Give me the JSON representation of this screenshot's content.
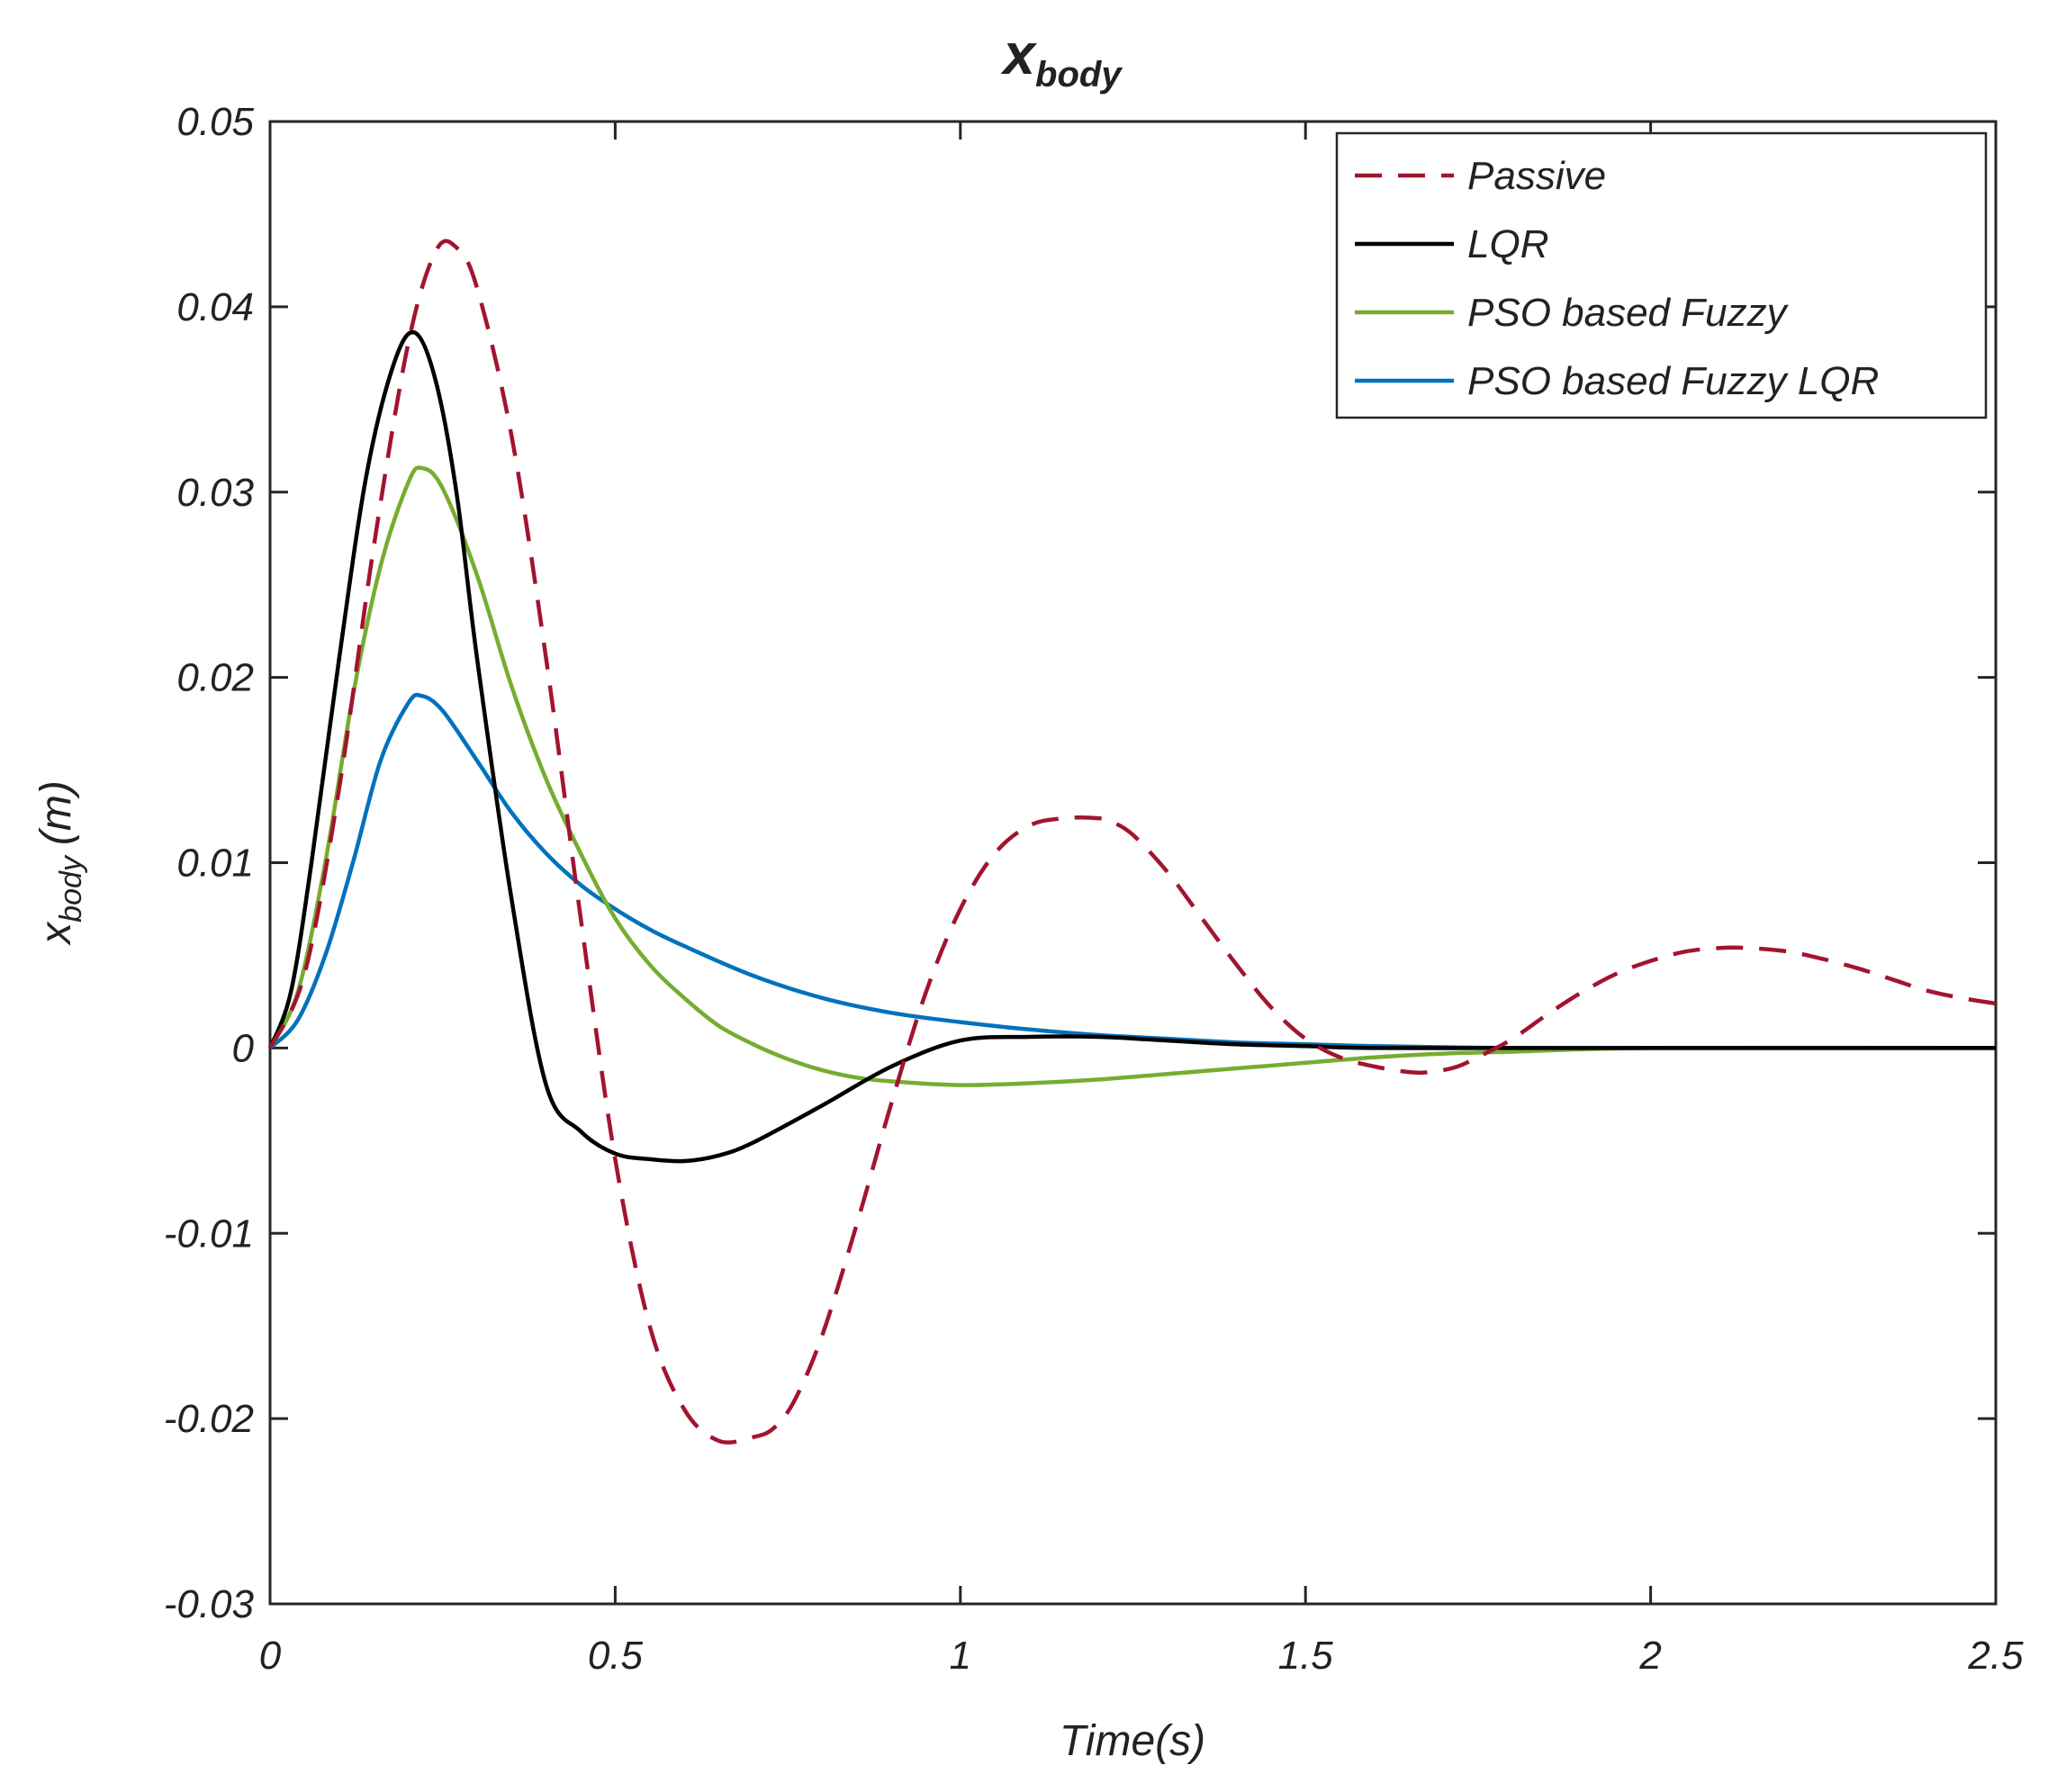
{
  "chart_data": {
    "type": "line",
    "title": {
      "main": "x",
      "subscript": "body"
    },
    "xlabel": "Time(s)",
    "ylabel": {
      "main": "x",
      "subscript": "body",
      "suffix": "(m)"
    },
    "xlim": [
      0,
      2.5
    ],
    "ylim": [
      -0.03,
      0.05
    ],
    "xticks": [
      0,
      0.5,
      1,
      1.5,
      2,
      2.5
    ],
    "xtick_labels": [
      "0",
      "0.5",
      "1",
      "1.5",
      "2",
      "2.5"
    ],
    "yticks": [
      -0.03,
      -0.02,
      -0.01,
      0,
      0.01,
      0.02,
      0.03,
      0.04,
      0.05
    ],
    "ytick_labels": [
      "-0.03",
      "-0.02",
      "-0.01",
      "0",
      "0.01",
      "0.02",
      "0.03",
      "0.04",
      "0.05"
    ],
    "grid": false,
    "legend_position": "top-right",
    "series": [
      {
        "name": "Passive",
        "color": "#A2142F",
        "dash": "dashed",
        "x": [
          0,
          0.05,
          0.1,
          0.15,
          0.2,
          0.24,
          0.27,
          0.3,
          0.35,
          0.4,
          0.45,
          0.5,
          0.55,
          0.6,
          0.65,
          0.7,
          0.73,
          0.76,
          0.8,
          0.85,
          0.9,
          0.95,
          1.0,
          1.05,
          1.1,
          1.15,
          1.2,
          1.22,
          1.25,
          1.3,
          1.35,
          1.4,
          1.45,
          1.5,
          1.55,
          1.6,
          1.65,
          1.68,
          1.72,
          1.76,
          1.8,
          1.85,
          1.9,
          1.95,
          2.0,
          2.05,
          2.1,
          2.14,
          2.2,
          2.25,
          2.3,
          2.35,
          2.4,
          2.45,
          2.5
        ],
        "y": [
          0,
          0.004,
          0.014,
          0.027,
          0.038,
          0.043,
          0.0432,
          0.041,
          0.033,
          0.021,
          0.007,
          -0.006,
          -0.015,
          -0.0195,
          -0.0212,
          -0.021,
          -0.0205,
          -0.019,
          -0.0155,
          -0.0095,
          -0.003,
          0.003,
          0.0075,
          0.0105,
          0.012,
          0.0124,
          0.0124,
          0.0122,
          0.0115,
          0.0095,
          0.007,
          0.0045,
          0.0022,
          0.0005,
          -0.0005,
          -0.001,
          -0.0013,
          -0.0013,
          -0.001,
          -0.0003,
          0.0005,
          0.0018,
          0.003,
          0.004,
          0.0047,
          0.0052,
          0.0054,
          0.0054,
          0.0052,
          0.0048,
          0.0043,
          0.0037,
          0.0031,
          0.0027,
          0.0024
        ]
      },
      {
        "name": "LQR",
        "color": "#000000",
        "dash": "solid",
        "x": [
          0,
          0.03,
          0.06,
          0.1,
          0.14,
          0.18,
          0.21,
          0.24,
          0.27,
          0.3,
          0.35,
          0.4,
          0.45,
          0.5,
          0.55,
          0.6,
          0.65,
          0.7,
          0.8,
          0.9,
          1.0,
          1.1,
          1.2,
          1.3,
          1.4,
          1.5,
          1.6,
          1.8,
          2.0,
          2.5
        ],
        "y": [
          0,
          0.003,
          0.01,
          0.021,
          0.031,
          0.037,
          0.0386,
          0.036,
          0.03,
          0.021,
          0.008,
          -0.002,
          -0.0045,
          -0.0057,
          -0.006,
          -0.0061,
          -0.0058,
          -0.0051,
          -0.0031,
          -0.001,
          0.0004,
          0.0006,
          0.0006,
          0.0004,
          0.0002,
          0.0001,
          0.0,
          0.0,
          0.0,
          0.0
        ]
      },
      {
        "name": "PSO based Fuzzy",
        "color": "#77AC30",
        "dash": "solid",
        "x": [
          0,
          0.04,
          0.08,
          0.12,
          0.16,
          0.2,
          0.22,
          0.25,
          0.3,
          0.35,
          0.4,
          0.45,
          0.5,
          0.55,
          0.6,
          0.65,
          0.7,
          0.75,
          0.8,
          0.85,
          0.9,
          1.0,
          1.1,
          1.2,
          1.3,
          1.4,
          1.5,
          1.6,
          1.7,
          1.8,
          2.0,
          2.5
        ],
        "y": [
          0,
          0.003,
          0.01,
          0.019,
          0.026,
          0.0305,
          0.0313,
          0.0302,
          0.0255,
          0.0195,
          0.0145,
          0.0105,
          0.007,
          0.0045,
          0.0027,
          0.0012,
          0.0002,
          -0.0006,
          -0.0012,
          -0.0016,
          -0.0018,
          -0.002,
          -0.0019,
          -0.0017,
          -0.0014,
          -0.0011,
          -0.0008,
          -0.0005,
          -0.0003,
          -0.0002,
          0.0,
          0.0
        ]
      },
      {
        "name": "PSO based Fuzzy LQR",
        "color": "#0072BD",
        "dash": "solid",
        "x": [
          0,
          0.04,
          0.08,
          0.12,
          0.16,
          0.2,
          0.22,
          0.25,
          0.3,
          0.35,
          0.4,
          0.45,
          0.5,
          0.55,
          0.6,
          0.7,
          0.8,
          0.9,
          1.0,
          1.1,
          1.2,
          1.3,
          1.4,
          1.5,
          1.6,
          1.8,
          2.0,
          2.5
        ],
        "y": [
          0,
          0.0015,
          0.005,
          0.01,
          0.0155,
          0.0186,
          0.019,
          0.0182,
          0.0155,
          0.0127,
          0.0105,
          0.0088,
          0.0075,
          0.0064,
          0.0055,
          0.0039,
          0.0027,
          0.0019,
          0.0014,
          0.001,
          0.0007,
          0.0005,
          0.0003,
          0.0002,
          0.0001,
          0.0,
          0.0,
          0.0
        ]
      }
    ]
  }
}
